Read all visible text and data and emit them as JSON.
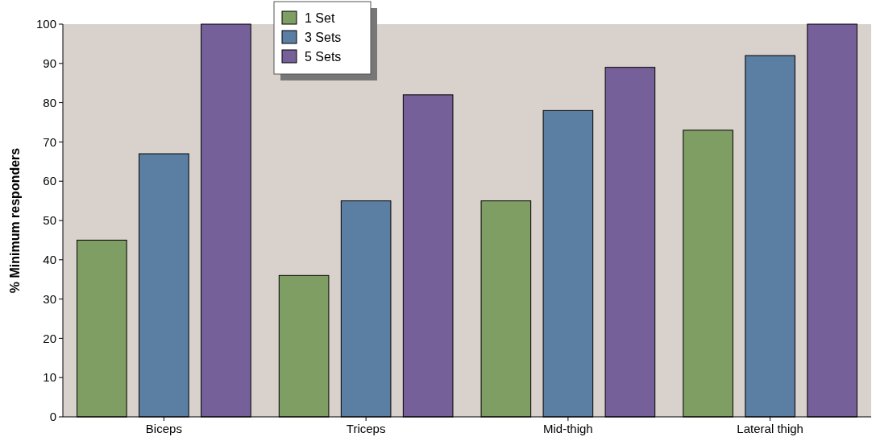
{
  "chart_data": {
    "type": "bar",
    "ylabel": "% Minimum responders",
    "categories": [
      "Biceps",
      "Triceps",
      "Mid-thigh",
      "Lateral thigh"
    ],
    "series": [
      {
        "name": "1 Set",
        "color": "#7f9e64",
        "values": [
          45,
          36,
          55,
          73
        ]
      },
      {
        "name": "3 Sets",
        "color": "#5a7fa3",
        "values": [
          67,
          55,
          78,
          92
        ]
      },
      {
        "name": "5 Sets",
        "color": "#76609a",
        "values": [
          100,
          82,
          89,
          100
        ]
      }
    ],
    "ylim": [
      0,
      100
    ],
    "yticks": [
      0,
      10,
      20,
      30,
      40,
      50,
      60,
      70,
      80,
      90,
      100
    ],
    "legend": "top",
    "grid": false
  }
}
